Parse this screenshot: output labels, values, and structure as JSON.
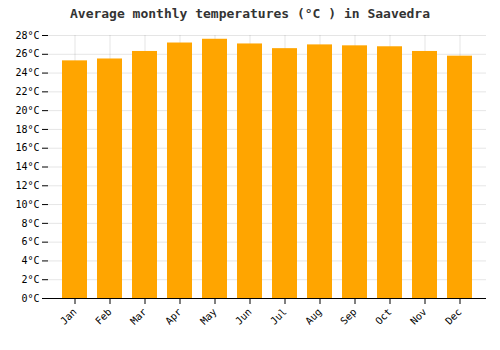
{
  "chart_data": {
    "type": "bar",
    "title": "Average monthly temperatures (°C ) in Saavedra",
    "categories": [
      "Jan",
      "Feb",
      "Mar",
      "Apr",
      "May",
      "Jun",
      "Jul",
      "Aug",
      "Sep",
      "Oct",
      "Nov",
      "Dec"
    ],
    "values": [
      25.3,
      25.5,
      26.3,
      27.2,
      27.6,
      27.1,
      26.6,
      27.0,
      26.9,
      26.8,
      26.3,
      25.8
    ],
    "color": "#FFA500",
    "ylim": [
      0,
      28
    ],
    "yticks": [
      {
        "value": 0,
        "label": "0°C"
      },
      {
        "value": 2,
        "label": "2°C"
      },
      {
        "value": 4,
        "label": "4°C"
      },
      {
        "value": 6,
        "label": "6°C"
      },
      {
        "value": 8,
        "label": "8°C"
      },
      {
        "value": 10,
        "label": "10°C"
      },
      {
        "value": 12,
        "label": "12°C"
      },
      {
        "value": 14,
        "label": "14°C"
      },
      {
        "value": 16,
        "label": "16°C"
      },
      {
        "value": 18,
        "label": "18°C"
      },
      {
        "value": 20,
        "label": "20°C"
      },
      {
        "value": 22,
        "label": "22°C"
      },
      {
        "value": 24,
        "label": "24°C"
      },
      {
        "value": 26,
        "label": "26°C"
      },
      {
        "value": 28,
        "label": "28°C"
      }
    ],
    "grid": true
  }
}
